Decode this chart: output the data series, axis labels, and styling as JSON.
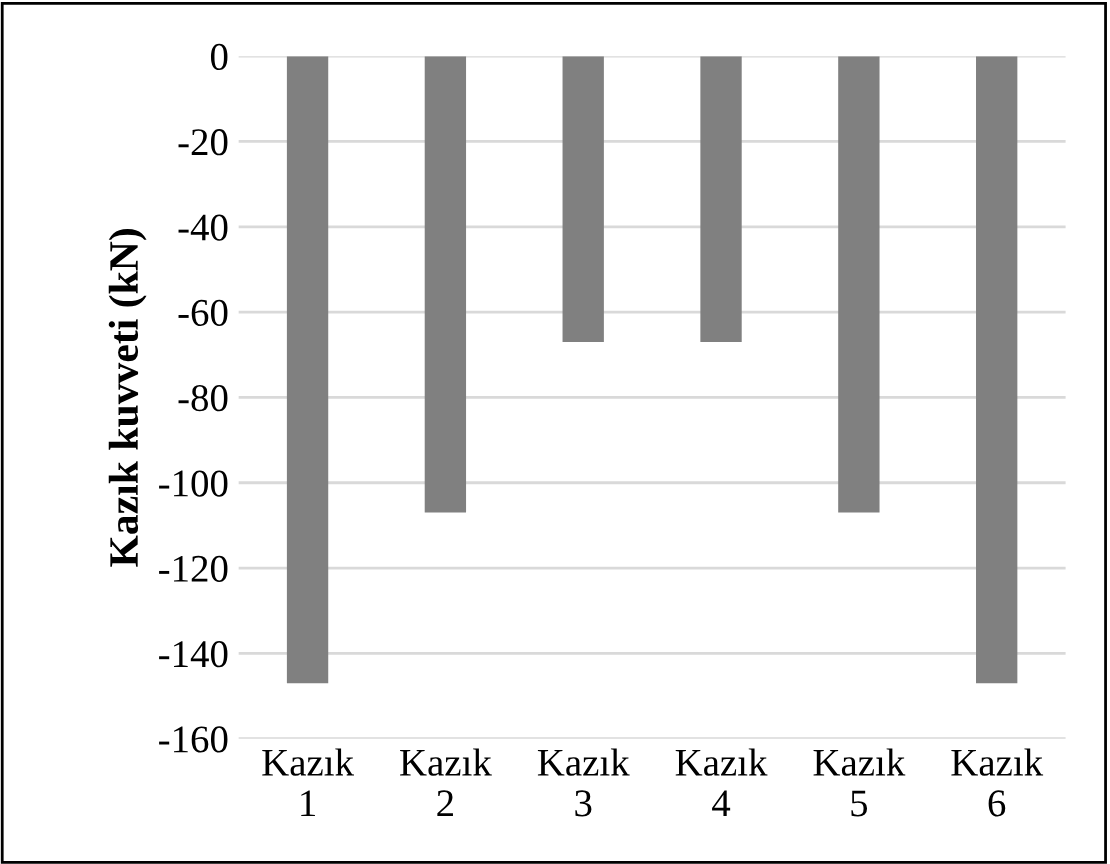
{
  "chart_data": {
    "type": "bar",
    "ylabel": "Kazık kuvveti (kN)",
    "categories": [
      "Kazık\n1",
      "Kazık\n2",
      "Kazık\n3",
      "Kazık\n4",
      "Kazık\n5",
      "Kazık\n6"
    ],
    "values": [
      -147,
      -107,
      -67,
      -67,
      -107,
      -147
    ],
    "color": "#808080",
    "ylim": [
      -160,
      0
    ],
    "yticks": [
      -160,
      -140,
      -120,
      -100,
      -80,
      -60,
      -40,
      -20,
      0
    ],
    "grid": "y"
  }
}
